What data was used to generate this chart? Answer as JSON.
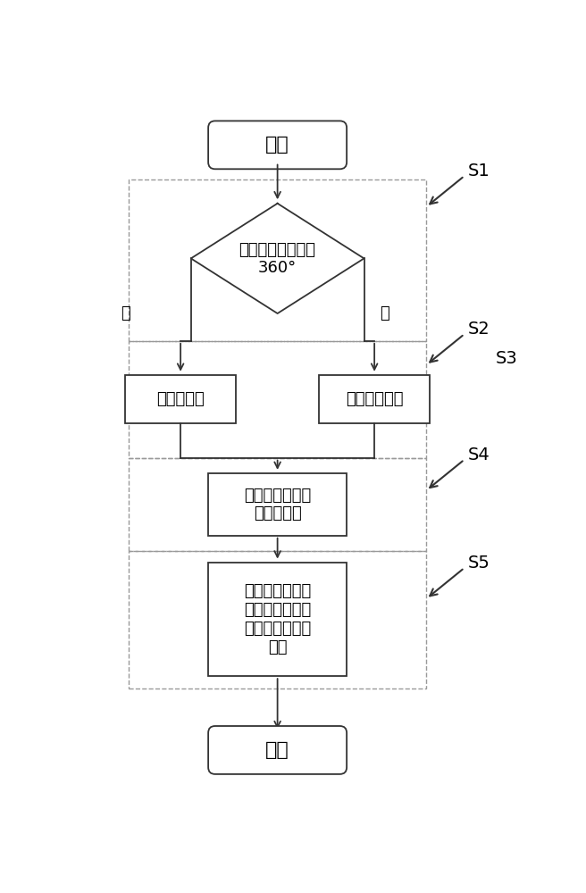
{
  "bg_color": "#ffffff",
  "line_color": "#333333",
  "dashed_color": "#999999",
  "text_color": "#000000",
  "start_text": "开始",
  "end_text": "结束",
  "diamond_line1": "旋转角度是否大于",
  "diamond_line2": "360°",
  "yes_label": "是",
  "no_label": "否",
  "box1_text": "极对数模式",
  "box2_text": "脉冲累计模式",
  "box3_line1": "设置对应零点信",
  "box3_line2": "号产生位置",
  "box4_line1": "设置一定脉冲数",
  "box4_line2": "下，即一定转速",
  "box4_line3": "下零点信号动作",
  "box4_line4": "时序",
  "s1": "S1",
  "s2": "S2",
  "s3": "S3",
  "s4": "S4",
  "s5": "S5"
}
